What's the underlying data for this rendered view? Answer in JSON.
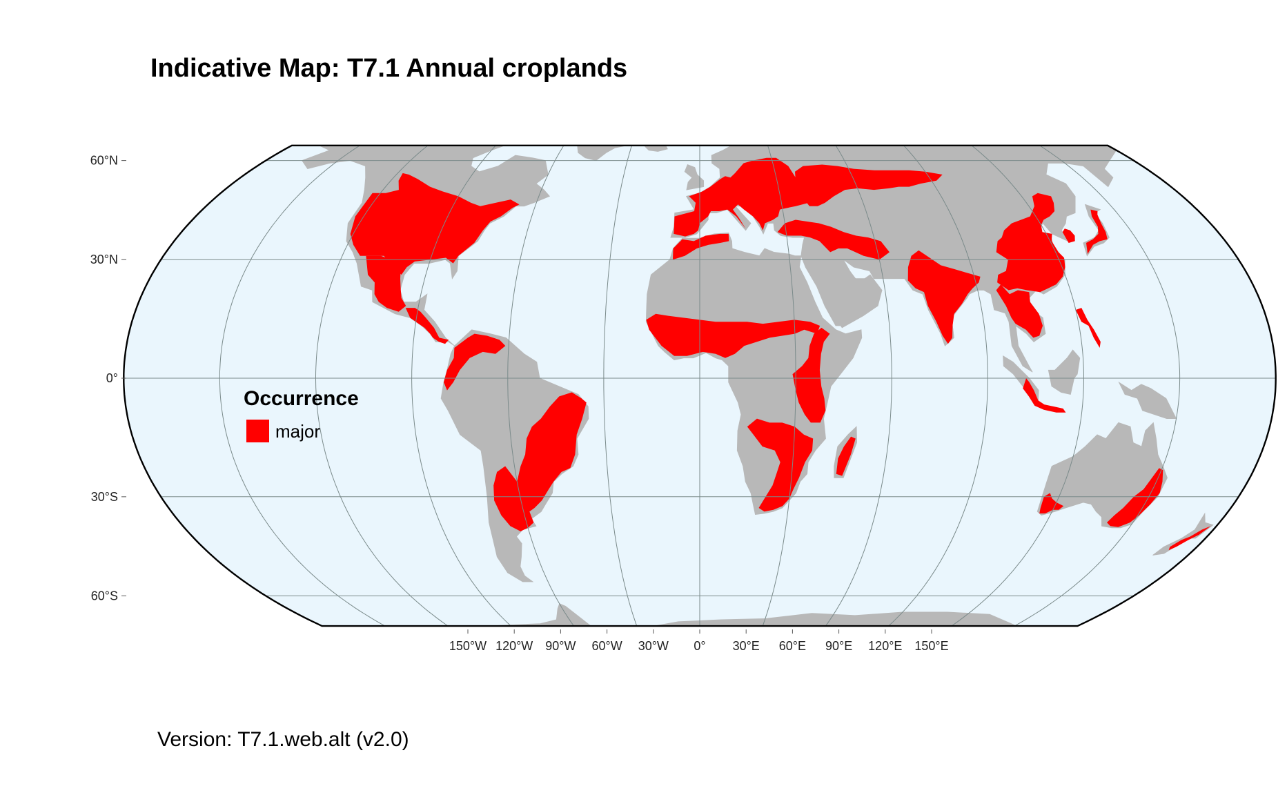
{
  "title": "Indicative Map: T7.1 Annual croplands",
  "version_text": "Version: T7.1.web.alt (v2.0)",
  "map": {
    "projection": "Equal Earth",
    "ocean_color": "#eaf6fd",
    "land_color": "#b8b8b8",
    "occurrence_color": "#ff0000",
    "graticule_color": "#7a8a8a",
    "border_color": "#000000",
    "latitude_labels": [
      {
        "lat": 60,
        "label": "60°N"
      },
      {
        "lat": 30,
        "label": "30°N"
      },
      {
        "lat": 0,
        "label": "0°"
      },
      {
        "lat": -30,
        "label": "30°S"
      },
      {
        "lat": -60,
        "label": "60°S"
      }
    ],
    "longitude_labels": [
      {
        "lon": -150,
        "label": "150°W"
      },
      {
        "lon": -120,
        "label": "120°W"
      },
      {
        "lon": -90,
        "label": "90°W"
      },
      {
        "lon": -60,
        "label": "60°W"
      },
      {
        "lon": -30,
        "label": "30°W"
      },
      {
        "lon": 0,
        "label": "0°"
      },
      {
        "lon": 30,
        "label": "30°E"
      },
      {
        "lon": 60,
        "label": "60°E"
      },
      {
        "lon": 90,
        "label": "90°E"
      },
      {
        "lon": 120,
        "label": "120°E"
      },
      {
        "lon": 150,
        "label": "150°E"
      }
    ]
  },
  "legend": {
    "title": "Occurrence",
    "items": [
      {
        "label": "major",
        "color": "#ff0000"
      }
    ]
  }
}
